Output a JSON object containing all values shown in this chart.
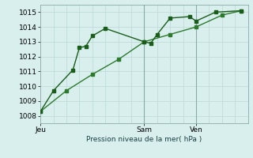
{
  "background_color": "#d8efee",
  "grid_color_major": "#c0dbd8",
  "grid_color_minor": "#d0e8e5",
  "line_color1": "#1a5c1a",
  "line_color2": "#2d7a2d",
  "xlabel": "Pression niveau de la mer( hPa )",
  "ylim": [
    1007.5,
    1015.5
  ],
  "yticks": [
    1008,
    1009,
    1010,
    1011,
    1012,
    1013,
    1014,
    1015
  ],
  "xtick_labels": [
    "Jeu",
    "Sam",
    "Ven"
  ],
  "xtick_positions": [
    0,
    16,
    24
  ],
  "vline_positions": [
    16,
    24
  ],
  "xlim": [
    0,
    32
  ],
  "series1_x": [
    0,
    2,
    5,
    6,
    7,
    8,
    10,
    16,
    17,
    18,
    20,
    23,
    24,
    27,
    31
  ],
  "series1_y": [
    1008.3,
    1009.7,
    1011.1,
    1012.6,
    1012.7,
    1013.4,
    1013.9,
    1013.0,
    1012.9,
    1013.5,
    1014.6,
    1014.7,
    1014.4,
    1015.0,
    1015.1
  ],
  "series2_x": [
    0,
    4,
    8,
    12,
    16,
    20,
    24,
    28,
    31
  ],
  "series2_y": [
    1008.3,
    1009.7,
    1010.8,
    1011.8,
    1013.0,
    1013.5,
    1014.0,
    1014.8,
    1015.1
  ],
  "marker_size": 2.5,
  "linewidth": 1.0,
  "label_fontsize": 6.5,
  "tick_fontsize": 6.5
}
